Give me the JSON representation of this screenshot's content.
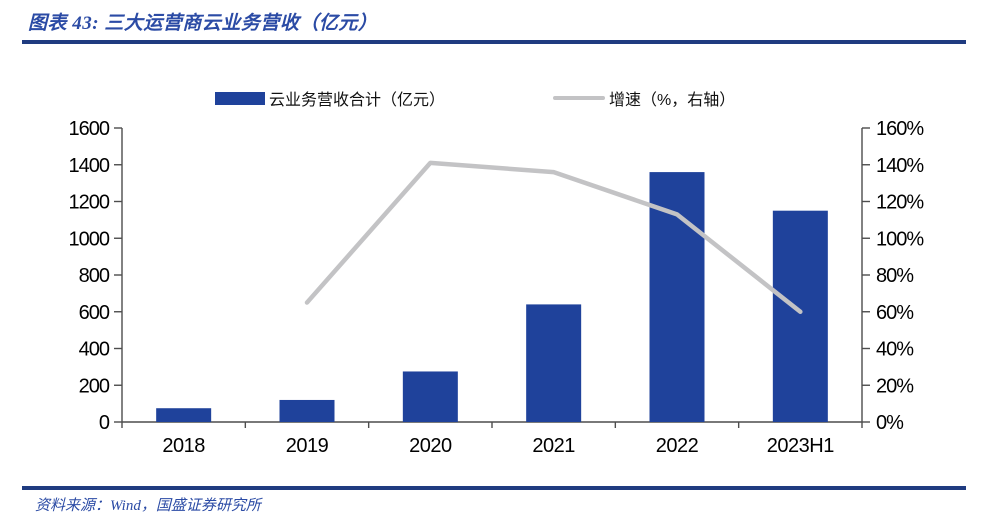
{
  "header": {
    "title": "图表 43:  三大运营商云业务营收（亿元）"
  },
  "footer": {
    "source": "资料来源：Wind，国盛证券研究所"
  },
  "colors": {
    "accent_rule": "#1F3B80",
    "title_text": "#2B4BA5",
    "source_text": "#2B4BA5",
    "bar": "#1F429B",
    "line": "#C3C3C5",
    "axis": "#4D4D4D",
    "tick_label": "#000000"
  },
  "chart_data": {
    "type": "combo",
    "title": "三大运营商云业务营收（亿元）",
    "categories": [
      "2018",
      "2019",
      "2020",
      "2021",
      "2022",
      "2023H1"
    ],
    "series": [
      {
        "name": "云业务营收合计（亿元）",
        "type": "bar",
        "axis": "left",
        "values": [
          75,
          120,
          275,
          640,
          1360,
          1150
        ]
      },
      {
        "name": "增速（%，右轴）",
        "type": "line",
        "axis": "right",
        "values": [
          null,
          65,
          141,
          136,
          113,
          60
        ]
      }
    ],
    "left_axis": {
      "min": 0,
      "max": 1600,
      "step": 200,
      "suffix": ""
    },
    "right_axis": {
      "min": 0,
      "max": 160,
      "step": 20,
      "suffix": "%"
    },
    "grid": false,
    "legend_position": "top"
  }
}
